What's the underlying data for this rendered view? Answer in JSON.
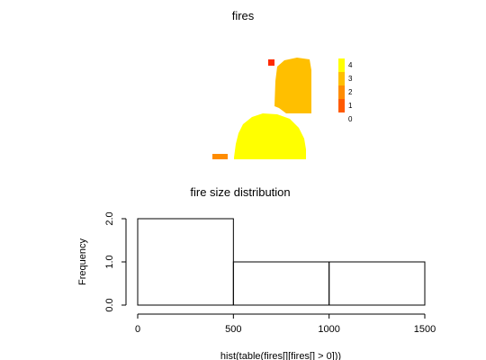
{
  "chart_data": [
    {
      "type": "heatmap",
      "title": "fires",
      "legend": {
        "position": "right",
        "labels": [
          "4",
          "3",
          "2",
          "1",
          "0"
        ],
        "colors": [
          "#ffff00",
          "#ffbf00",
          "#ff8c00",
          "#ff5a00",
          "#ff2a00"
        ]
      },
      "patches": [
        {
          "value": 4,
          "color": "#ffff00"
        },
        {
          "value": 3,
          "color": "#ffbf00"
        },
        {
          "value": 2,
          "color": "#ff8c00"
        },
        {
          "value": 1,
          "color": "#ff5a00"
        },
        {
          "value": 0,
          "color": "#ff2a00"
        }
      ]
    },
    {
      "type": "bar",
      "title": "fire size distribution",
      "xlabel": "hist(table(fires[][fires[] > 0]))",
      "ylabel": "Frequency",
      "bins": [
        {
          "from": 0,
          "to": 500,
          "count": 2
        },
        {
          "from": 500,
          "to": 1000,
          "count": 1
        },
        {
          "from": 1000,
          "to": 1500,
          "count": 1
        }
      ],
      "xticks": [
        "0",
        "500",
        "1000",
        "1500"
      ],
      "yticks": [
        "0.0",
        "1.0",
        "2.0"
      ],
      "xlim": [
        0,
        1500
      ],
      "ylim": [
        0,
        2
      ]
    }
  ]
}
